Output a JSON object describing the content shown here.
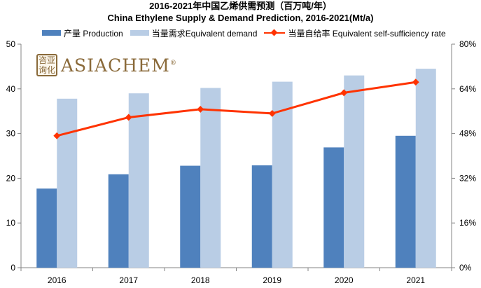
{
  "chart_data": {
    "type": "bar",
    "title": "2016-2021年中国乙烯供需预测（百万吨/年）",
    "subtitle": "China Ethylene Supply & Demand Prediction, 2016-2021(Mt/a)",
    "categories": [
      "2016",
      "2017",
      "2018",
      "2019",
      "2020",
      "2021"
    ],
    "series": [
      {
        "name": "产量 Production",
        "kind": "bar",
        "axis": "left",
        "color": "#4f81bd",
        "values": [
          17.7,
          20.9,
          22.8,
          22.9,
          26.9,
          29.5
        ]
      },
      {
        "name": "当量需求Equivalent demand",
        "kind": "bar",
        "axis": "left",
        "color": "#b9cde5",
        "values": [
          37.8,
          39.0,
          40.2,
          41.6,
          43.0,
          44.5
        ]
      },
      {
        "name": "当量自给率 Equivalent self-sufficiency rate",
        "kind": "line",
        "axis": "right",
        "color": "#ff3300",
        "values": [
          47.2,
          53.8,
          56.7,
          55.2,
          62.6,
          66.4
        ]
      }
    ],
    "y_left": {
      "min": 0,
      "max": 50,
      "ticks": [
        0,
        10,
        20,
        30,
        40,
        50
      ]
    },
    "y_right": {
      "min": 0,
      "max": 80,
      "ticks": [
        0,
        16,
        32,
        48,
        64,
        80
      ],
      "unit": "%"
    },
    "grid": false,
    "legend_position": "top"
  },
  "watermark": {
    "seal_text": [
      "咨亚",
      "询化"
    ],
    "brand": "ASIACHEM",
    "reg_mark": "®"
  }
}
